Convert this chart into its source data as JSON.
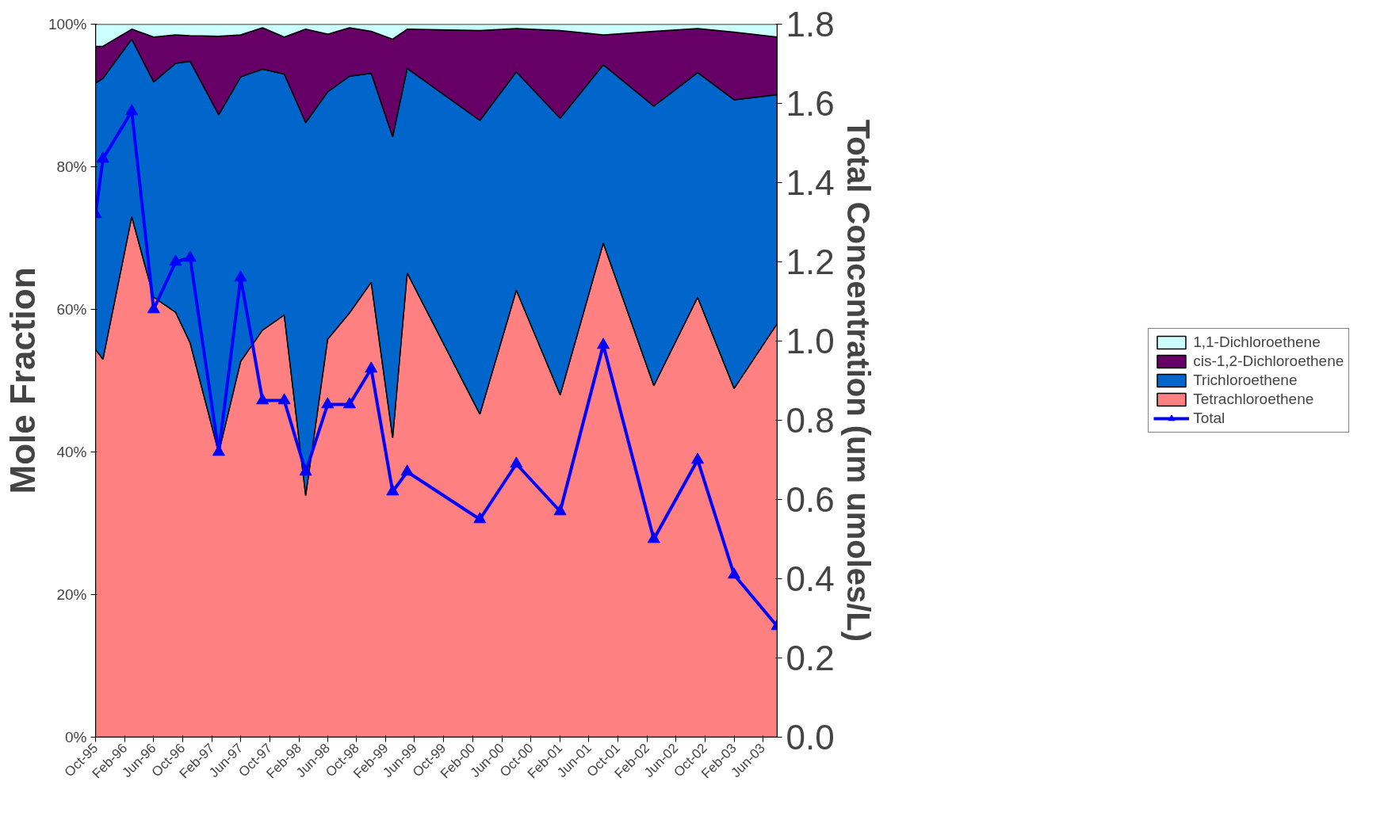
{
  "chart_data": {
    "type": "area",
    "stacked": true,
    "xlabel": null,
    "ylabel": "Mole Fraction",
    "y2label": "Total Concentration (um umoles/L)",
    "x": [
      "1995-10",
      "1995-11",
      "1996-03",
      "1996-06",
      "1996-09",
      "1996-11",
      "1997-03",
      "1997-06",
      "1997-09",
      "1997-12",
      "1998-03",
      "1998-06",
      "1998-09",
      "1998-12",
      "1999-03",
      "1999-05",
      "2000-03",
      "2000-08",
      "2001-02",
      "2001-08",
      "2002-03",
      "2002-09",
      "2003-02",
      "2003-08"
    ],
    "series": [
      {
        "name": "Tetrachloroethene",
        "color": "#ff8080",
        "values": [
          54.4,
          53.0,
          73.0,
          61.7,
          59.6,
          55.3,
          39.9,
          52.7,
          57.1,
          59.2,
          33.9,
          55.8,
          59.5,
          63.8,
          42.0,
          65.1,
          45.3,
          62.7,
          48.0,
          69.3,
          49.3,
          61.7,
          48.9,
          58.0
        ]
      },
      {
        "name": "Trichloroethene",
        "color": "#0066cc",
        "values": [
          37.3,
          39.4,
          24.9,
          30.2,
          34.9,
          39.5,
          47.4,
          39.9,
          36.6,
          33.8,
          52.3,
          34.7,
          33.2,
          29.3,
          42.2,
          28.7,
          41.2,
          30.6,
          38.8,
          25.0,
          39.2,
          31.5,
          40.5,
          32.1
        ]
      },
      {
        "name": "cis-1,2-Dichloroethene",
        "color": "#660066",
        "values": [
          5.2,
          4.5,
          1.4,
          6.3,
          4.0,
          3.6,
          11.0,
          5.9,
          5.8,
          5.2,
          13.1,
          8.1,
          6.8,
          5.9,
          13.7,
          5.5,
          12.6,
          6.1,
          12.3,
          4.2,
          10.5,
          6.2,
          9.5,
          8.1
        ]
      },
      {
        "name": "1,1-Dichloroethene",
        "color": "#ccffff",
        "values": [
          3.1,
          3.1,
          0.7,
          1.8,
          1.5,
          1.6,
          1.7,
          1.5,
          0.5,
          1.8,
          0.7,
          1.4,
          0.5,
          1.0,
          2.1,
          0.7,
          0.9,
          0.6,
          0.9,
          1.5,
          1.0,
          0.6,
          1.1,
          1.8
        ]
      },
      {
        "name": "Total",
        "type": "line",
        "axis": "y2",
        "color": "#0000ff",
        "marker": "triangle",
        "values": [
          1.32,
          1.46,
          1.58,
          1.08,
          1.2,
          1.21,
          0.72,
          1.16,
          0.85,
          0.85,
          0.67,
          0.84,
          0.84,
          0.93,
          0.62,
          0.67,
          0.55,
          0.69,
          0.57,
          0.99,
          0.5,
          0.7,
          0.41,
          0.28
        ]
      }
    ],
    "xlim": [
      "1995-10",
      "2003-08"
    ],
    "xticks": [
      {
        "value": "1995-10",
        "label": "Oct-95"
      },
      {
        "value": "1996-02",
        "label": "Feb-96"
      },
      {
        "value": "1996-06",
        "label": "Jun-96"
      },
      {
        "value": "1996-10",
        "label": "Oct-96"
      },
      {
        "value": "1997-02",
        "label": "Feb-97"
      },
      {
        "value": "1997-06",
        "label": "Jun-97"
      },
      {
        "value": "1997-10",
        "label": "Oct-97"
      },
      {
        "value": "1998-02",
        "label": "Feb-98"
      },
      {
        "value": "1998-06",
        "label": "Jun-98"
      },
      {
        "value": "1998-10",
        "label": "Oct-98"
      },
      {
        "value": "1999-02",
        "label": "Feb-99"
      },
      {
        "value": "1999-06",
        "label": "Jun-99"
      },
      {
        "value": "1999-10",
        "label": "Oct-99"
      },
      {
        "value": "2000-02",
        "label": "Feb-00"
      },
      {
        "value": "2000-06",
        "label": "Jun-00"
      },
      {
        "value": "2000-10",
        "label": "Oct-00"
      },
      {
        "value": "2001-02",
        "label": "Feb-01"
      },
      {
        "value": "2001-06",
        "label": "Jun-01"
      },
      {
        "value": "2001-10",
        "label": "Oct-01"
      },
      {
        "value": "2002-02",
        "label": "Feb-02"
      },
      {
        "value": "2002-06",
        "label": "Jun-02"
      },
      {
        "value": "2002-10",
        "label": "Oct-02"
      },
      {
        "value": "2003-02",
        "label": "Feb-03"
      },
      {
        "value": "2003-06",
        "label": "Jun-03"
      }
    ],
    "ylim": [
      0,
      100
    ],
    "yticks": [
      {
        "value": 0,
        "label": "0%"
      },
      {
        "value": 20,
        "label": "20%"
      },
      {
        "value": 40,
        "label": "40%"
      },
      {
        "value": 60,
        "label": "60%"
      },
      {
        "value": 80,
        "label": "80%"
      },
      {
        "value": 100,
        "label": "100%"
      }
    ],
    "y2lim": [
      0,
      1.8
    ],
    "y2ticks": [
      {
        "value": 0,
        "label": "0.0"
      },
      {
        "value": 0.2,
        "label": "0.2"
      },
      {
        "value": 0.4,
        "label": "0.4"
      },
      {
        "value": 0.6,
        "label": "0.6"
      },
      {
        "value": 0.8,
        "label": "0.8"
      },
      {
        "value": 1.0,
        "label": "1.0"
      },
      {
        "value": 1.2,
        "label": "1.2"
      },
      {
        "value": 1.4,
        "label": "1.4"
      },
      {
        "value": 1.6,
        "label": "1.6"
      },
      {
        "value": 1.8,
        "label": "1.8"
      }
    ],
    "legend": "right"
  }
}
